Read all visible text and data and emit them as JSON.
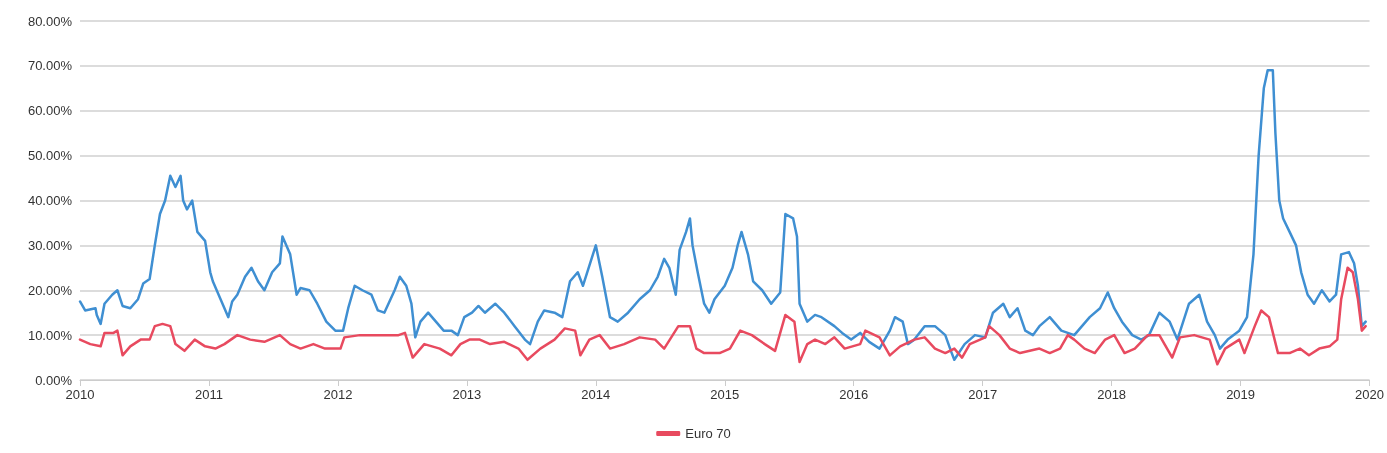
{
  "chart_data": {
    "type": "line",
    "xlim": [
      2010,
      2020
    ],
    "xticks": [
      2010,
      2011,
      2012,
      2013,
      2014,
      2015,
      2016,
      2017,
      2018,
      2019,
      2020
    ],
    "ylim": [
      0,
      80
    ],
    "yticks": [
      {
        "value": 0,
        "label": "0.00%"
      },
      {
        "value": 10,
        "label": "10.00%"
      },
      {
        "value": 20,
        "label": "20.00%"
      },
      {
        "value": 30,
        "label": "30.00%"
      },
      {
        "value": 40,
        "label": "40.00%"
      },
      {
        "value": 50,
        "label": "50.00%"
      },
      {
        "value": 60,
        "label": "60.00%"
      },
      {
        "value": 70,
        "label": "70.00%"
      },
      {
        "value": 80,
        "label": "80.00%"
      }
    ],
    "grid": "y",
    "legend": "bottom",
    "marker": "none",
    "line_style": "solid",
    "series": [
      {
        "color": "#3f8fd2",
        "x": [
          2010.0,
          2010.04,
          2010.12,
          2010.13,
          2010.16,
          2010.19,
          2010.25,
          2010.29,
          2010.33,
          2010.39,
          2010.45,
          2010.49,
          2010.54,
          2010.58,
          2010.62,
          2010.66,
          2010.7,
          2010.74,
          2010.78,
          2010.8,
          2010.83,
          2010.87,
          2010.91,
          2010.97,
          2011.01,
          2011.03,
          2011.09,
          2011.15,
          2011.18,
          2011.22,
          2011.28,
          2011.33,
          2011.38,
          2011.43,
          2011.49,
          2011.55,
          2011.57,
          2011.63,
          2011.68,
          2011.71,
          2011.78,
          2011.84,
          2011.91,
          2011.98,
          2012.04,
          2012.08,
          2012.13,
          2012.19,
          2012.26,
          2012.31,
          2012.36,
          2012.44,
          2012.48,
          2012.53,
          2012.57,
          2012.6,
          2012.64,
          2012.7,
          2012.76,
          2012.82,
          2012.88,
          2012.93,
          2012.98,
          2013.04,
          2013.09,
          2013.14,
          2013.22,
          2013.29,
          2013.37,
          2013.45,
          2013.49,
          2013.55,
          2013.6,
          2013.68,
          2013.74,
          2013.8,
          2013.86,
          2013.9,
          2013.95,
          2014.0,
          2014.05,
          2014.11,
          2014.17,
          2014.25,
          2014.34,
          2014.42,
          2014.48,
          2014.53,
          2014.57,
          2014.62,
          2014.65,
          2014.7,
          2014.73,
          2014.75,
          2014.79,
          2014.84,
          2014.88,
          2014.92,
          2015.0,
          2015.06,
          2015.1,
          2015.13,
          2015.18,
          2015.22,
          2015.29,
          2015.36,
          2015.43,
          2015.47,
          2015.53,
          2015.56,
          2015.58,
          2015.64,
          2015.7,
          2015.75,
          2015.85,
          2015.91,
          2015.98,
          2016.05,
          2016.12,
          2016.2,
          2016.28,
          2016.32,
          2016.38,
          2016.42,
          2016.47,
          2016.55,
          2016.63,
          2016.71,
          2016.76,
          2016.78,
          2016.86,
          2016.94,
          2017.02,
          2017.08,
          2017.16,
          2017.21,
          2017.27,
          2017.33,
          2017.39,
          2017.44,
          2017.52,
          2017.61,
          2017.71,
          2017.83,
          2017.91,
          2017.97,
          2018.02,
          2018.08,
          2018.16,
          2018.23,
          2018.29,
          2018.37,
          2018.45,
          2018.51,
          2018.6,
          2018.68,
          2018.74,
          2018.8,
          2018.84,
          2018.9,
          2018.99,
          2019.05,
          2019.1,
          2019.14,
          2019.18,
          2019.21,
          2019.25,
          2019.27,
          2019.3,
          2019.33,
          2019.38,
          2019.43,
          2019.47,
          2019.52,
          2019.57,
          2019.63,
          2019.69,
          2019.74,
          2019.78,
          2019.84,
          2019.88,
          2019.91,
          2019.94,
          2019.97
        ],
        "values": [
          17.5,
          15.5,
          16,
          14.5,
          12.5,
          17,
          19,
          20,
          16.5,
          16,
          18,
          21.5,
          22.5,
          30,
          37,
          40,
          45.5,
          43,
          45.5,
          40,
          38,
          40,
          33,
          31,
          24,
          22,
          18,
          14,
          17.5,
          19,
          23,
          25,
          22,
          20,
          24,
          26,
          32,
          28,
          19,
          20.5,
          20,
          17,
          13,
          11,
          11,
          16,
          21,
          20,
          19,
          15.5,
          15,
          20,
          23,
          21,
          17,
          9.5,
          13,
          15,
          13,
          11,
          11,
          10,
          14,
          15,
          16.5,
          15,
          17,
          15,
          12,
          9,
          8,
          13,
          15.5,
          15,
          14,
          22,
          24,
          21,
          25.5,
          30,
          23,
          14,
          13,
          15,
          18,
          20,
          23,
          27,
          25,
          19,
          29,
          33,
          36,
          30,
          24,
          17,
          15,
          18,
          21,
          25,
          30,
          33,
          28,
          22,
          20,
          17,
          19.5,
          37,
          36,
          32,
          17,
          13,
          14.5,
          14,
          12,
          10.5,
          9,
          10.5,
          8.5,
          7,
          11,
          14,
          13,
          8,
          9,
          12,
          12,
          10,
          6,
          4.5,
          8,
          10,
          9.5,
          15,
          17,
          14,
          16,
          11,
          10,
          12,
          14,
          11,
          10,
          14,
          16,
          19.5,
          16,
          13,
          10,
          9,
          10,
          15,
          13,
          9,
          17,
          19,
          13,
          10,
          7,
          9,
          11,
          14,
          28,
          50,
          65,
          69,
          69,
          55,
          40,
          36,
          33,
          30,
          24,
          19,
          17,
          20,
          17.5,
          19,
          28,
          28.5,
          26,
          21,
          12,
          13
        ]
      },
      {
        "name": "Euro 70",
        "color": "#e84a5f",
        "x": [
          2010.0,
          2010.08,
          2010.16,
          2010.19,
          2010.26,
          2010.29,
          2010.33,
          2010.39,
          2010.47,
          2010.54,
          2010.58,
          2010.64,
          2010.7,
          2010.74,
          2010.81,
          2010.89,
          2010.97,
          2011.05,
          2011.12,
          2011.22,
          2011.32,
          2011.43,
          2011.55,
          2011.63,
          2011.71,
          2011.81,
          2011.9,
          2012.02,
          2012.05,
          2012.17,
          2012.26,
          2012.47,
          2012.52,
          2012.58,
          2012.67,
          2012.79,
          2012.88,
          2012.95,
          2013.02,
          2013.1,
          2013.18,
          2013.29,
          2013.4,
          2013.47,
          2013.57,
          2013.68,
          2013.76,
          2013.84,
          2013.88,
          2013.95,
          2014.03,
          2014.11,
          2014.22,
          2014.34,
          2014.46,
          2014.53,
          2014.64,
          2014.73,
          2014.78,
          2014.84,
          2014.96,
          2015.04,
          2015.12,
          2015.21,
          2015.31,
          2015.39,
          2015.47,
          2015.54,
          2015.58,
          2015.64,
          2015.7,
          2015.78,
          2015.85,
          2015.93,
          2016.05,
          2016.09,
          2016.2,
          2016.28,
          2016.36,
          2016.47,
          2016.55,
          2016.63,
          2016.71,
          2016.78,
          2016.84,
          2016.9,
          2017.02,
          2017.05,
          2017.13,
          2017.21,
          2017.29,
          2017.44,
          2017.52,
          2017.6,
          2017.66,
          2017.71,
          2017.79,
          2017.87,
          2017.95,
          2018.02,
          2018.1,
          2018.18,
          2018.28,
          2018.37,
          2018.47,
          2018.53,
          2018.64,
          2018.76,
          2018.82,
          2018.88,
          2018.99,
          2019.03,
          2019.11,
          2019.16,
          2019.22,
          2019.29,
          2019.38,
          2019.46,
          2019.53,
          2019.61,
          2019.69,
          2019.75,
          2019.78,
          2019.83,
          2019.87,
          2019.91,
          2019.94,
          2019.97
        ],
        "values": [
          9,
          8,
          7.5,
          10.5,
          10.5,
          11,
          5.5,
          7.5,
          9,
          9,
          12,
          12.5,
          12,
          8,
          6.5,
          9,
          7.5,
          7,
          8,
          10,
          9,
          8.5,
          10,
          8,
          7,
          8,
          7,
          7,
          9.5,
          10,
          10,
          10,
          10.5,
          5,
          8,
          7,
          5.5,
          8,
          9,
          9,
          8,
          8.5,
          7,
          4.5,
          7,
          9,
          11.5,
          11,
          5.5,
          9,
          10,
          7,
          8,
          9.5,
          9,
          7,
          12,
          12,
          7,
          6,
          6,
          7,
          11,
          10,
          8,
          6.5,
          14.5,
          13,
          4,
          8,
          9,
          8,
          9.5,
          7,
          8,
          11,
          9.5,
          5.5,
          7.5,
          9,
          9.5,
          7,
          6,
          7,
          5,
          8,
          9.5,
          12,
          10,
          7,
          6,
          7,
          6,
          7,
          10,
          9,
          7,
          6,
          9,
          10,
          6,
          7,
          10,
          10,
          5,
          9.5,
          10,
          9,
          3.5,
          7,
          9,
          6,
          12,
          15.5,
          14,
          6,
          6,
          7,
          5.5,
          7,
          7.5,
          9,
          18,
          25,
          24,
          18,
          11,
          12
        ]
      }
    ]
  }
}
